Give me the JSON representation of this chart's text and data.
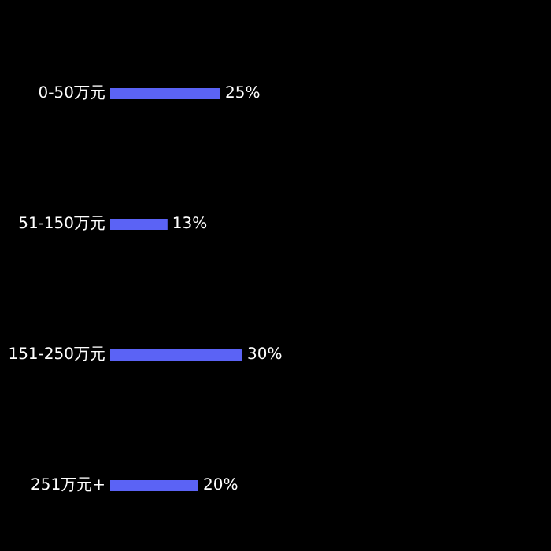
{
  "chart_data": {
    "type": "bar",
    "orientation": "horizontal",
    "categories": [
      "0-50万元",
      "51-150万元",
      "151-250万元",
      "251万元+"
    ],
    "values": [
      25,
      13,
      30,
      20
    ],
    "value_labels": [
      "25%",
      "13%",
      "30%",
      "20%"
    ],
    "color": "#5b63f5",
    "tick_labels": "y"
  }
}
